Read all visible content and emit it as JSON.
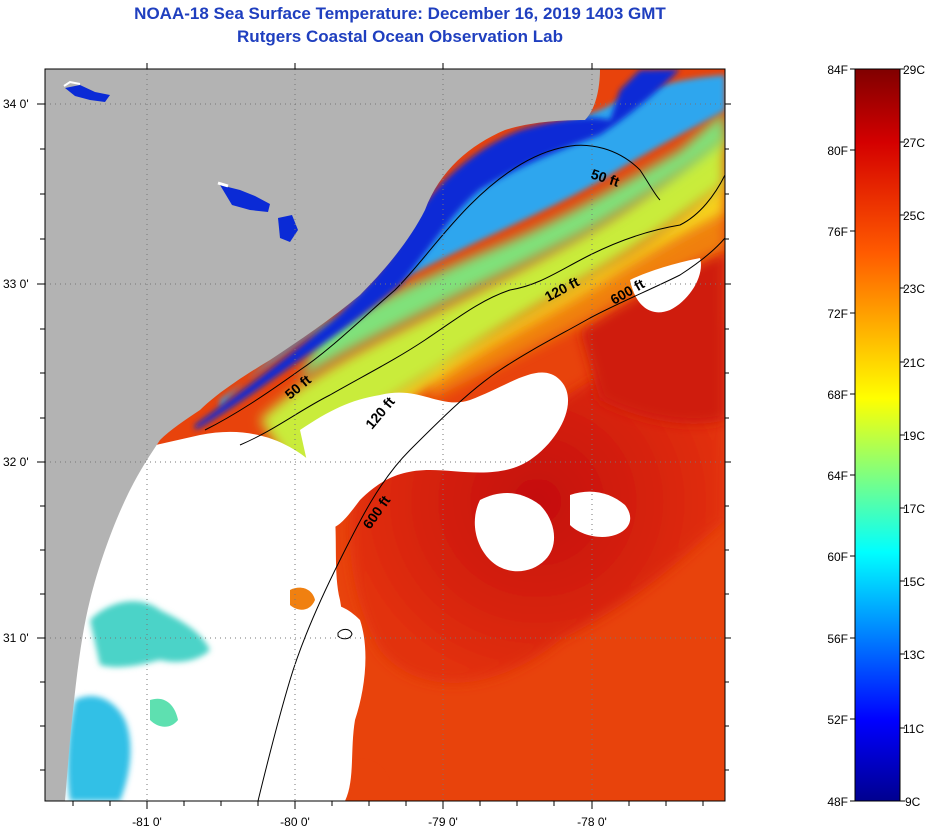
{
  "header": {
    "title": "NOAA-18 Sea Surface Temperature:  December 16, 2019 1403 GMT",
    "subtitle": "Rutgers Coastal Ocean Observation Lab"
  },
  "map": {
    "lat_labels": [
      "34 0'",
      "33 0'",
      "32 0'",
      "31 0'"
    ],
    "lon_labels": [
      "-81 0'",
      "-80 0'",
      "-79 0'",
      "-78 0'"
    ],
    "contours": [
      "50 ft",
      "120 ft",
      "600 ft",
      "50 ft",
      "120 ft",
      "600 ft"
    ],
    "colors": {
      "land": "#b3b3b3",
      "cloud": "#ffffff",
      "cold": "#0a2ad6",
      "warm": "#d21a0a"
    }
  },
  "colorbar": {
    "fahrenheit": [
      "84F",
      "80F",
      "76F",
      "72F",
      "68F",
      "64F",
      "60F",
      "56F",
      "52F",
      "48F"
    ],
    "celsius": [
      "29C",
      "27C",
      "25C",
      "23C",
      "21C",
      "19C",
      "17C",
      "15C",
      "13C",
      "11C",
      "9C"
    ]
  }
}
